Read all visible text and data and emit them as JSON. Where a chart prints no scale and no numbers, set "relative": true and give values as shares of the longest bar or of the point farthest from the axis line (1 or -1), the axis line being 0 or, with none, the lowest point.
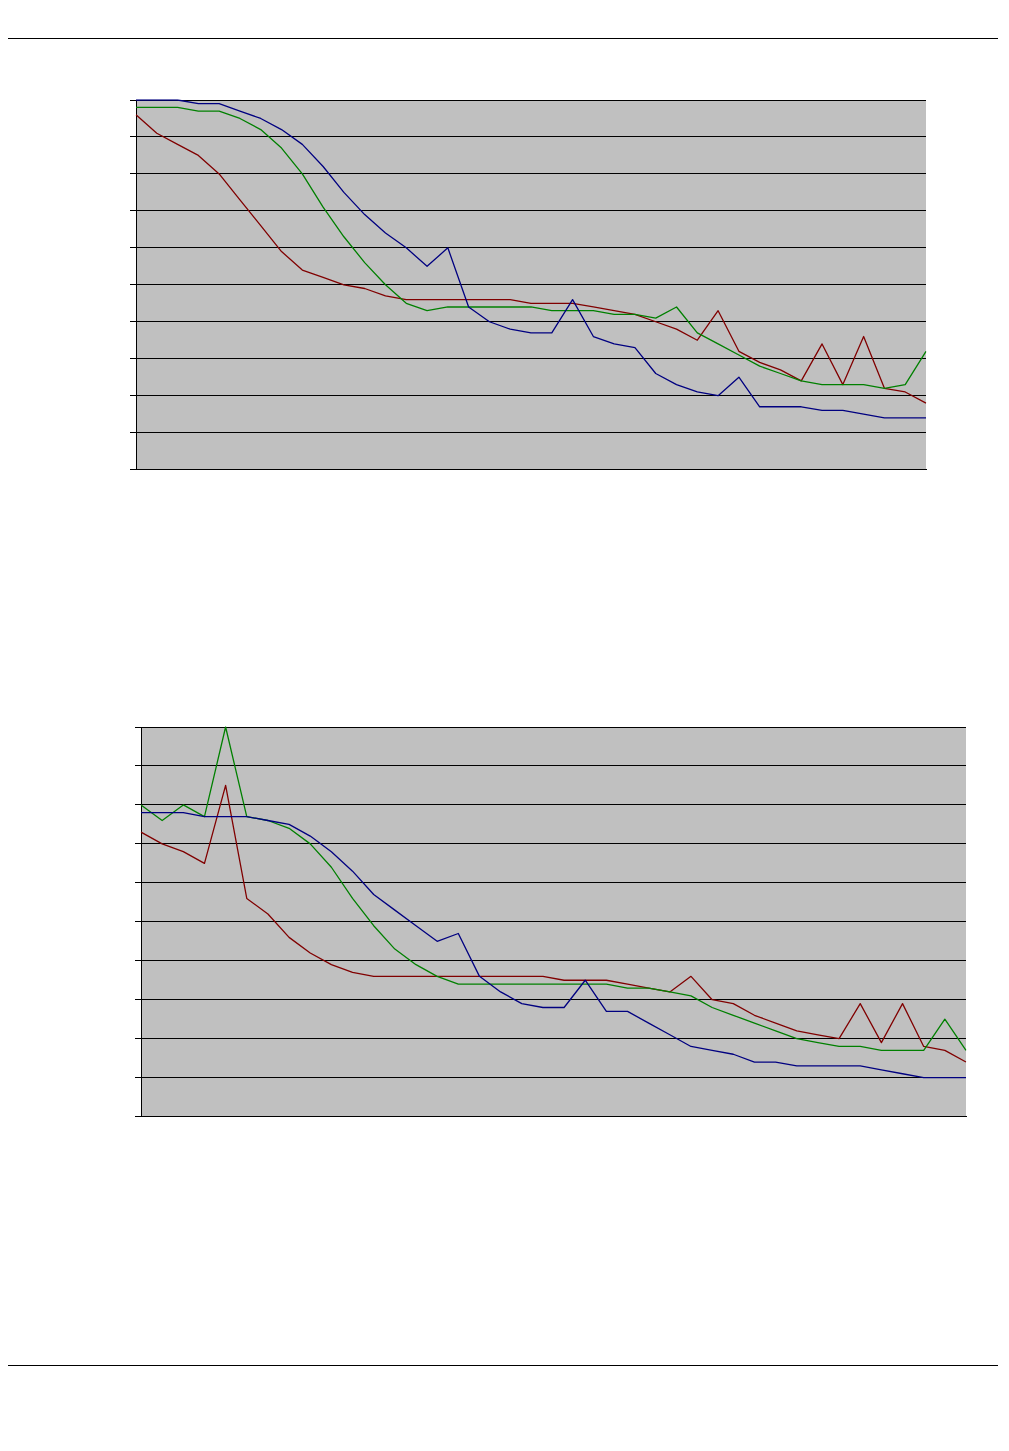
{
  "chart_data": [
    {
      "type": "line",
      "relative": true,
      "grid": "y",
      "legend": false,
      "marker": "none",
      "categories": [
        null,
        null,
        null,
        null,
        null,
        null,
        null,
        null,
        null,
        null,
        null,
        null,
        null,
        null,
        null,
        null,
        null,
        null,
        null,
        null,
        null,
        null,
        null,
        null,
        null,
        null,
        null,
        null,
        null,
        null,
        null,
        null,
        null,
        null,
        null,
        null,
        null,
        null,
        null
      ],
      "series": [
        {
          "color": "#000080",
          "values": [
            1.0,
            1.0,
            1.0,
            0.99,
            0.99,
            0.97,
            0.95,
            0.92,
            0.88,
            0.82,
            0.75,
            0.69,
            0.64,
            0.6,
            0.55,
            0.6,
            0.44,
            0.4,
            0.38,
            0.37,
            0.37,
            0.46,
            0.36,
            0.34,
            0.33,
            0.26,
            0.23,
            0.21,
            0.2,
            0.25,
            0.17,
            0.17,
            0.17,
            0.16,
            0.16,
            0.15,
            0.14,
            0.14,
            0.14
          ]
        },
        {
          "color": "#008000",
          "values": [
            0.98,
            0.98,
            0.98,
            0.97,
            0.97,
            0.95,
            0.92,
            0.87,
            0.8,
            0.71,
            0.63,
            0.56,
            0.5,
            0.45,
            0.43,
            0.44,
            0.44,
            0.44,
            0.44,
            0.44,
            0.43,
            0.43,
            0.43,
            0.42,
            0.42,
            0.41,
            0.44,
            0.37,
            0.34,
            0.31,
            0.28,
            0.26,
            0.24,
            0.23,
            0.23,
            0.23,
            0.22,
            0.23,
            0.32
          ]
        },
        {
          "color": "#800000",
          "values": [
            0.96,
            0.91,
            0.88,
            0.85,
            0.8,
            0.73,
            0.66,
            0.59,
            0.54,
            0.52,
            0.5,
            0.49,
            0.47,
            0.46,
            0.46,
            0.46,
            0.46,
            0.46,
            0.46,
            0.45,
            0.45,
            0.45,
            0.44,
            0.43,
            0.42,
            0.4,
            0.38,
            0.35,
            0.43,
            0.32,
            0.29,
            0.27,
            0.24,
            0.34,
            0.23,
            0.36,
            0.22,
            0.21,
            0.18
          ]
        }
      ]
    },
    {
      "type": "line",
      "relative": true,
      "grid": "y",
      "legend": false,
      "marker": "none",
      "categories": [
        null,
        null,
        null,
        null,
        null,
        null,
        null,
        null,
        null,
        null,
        null,
        null,
        null,
        null,
        null,
        null,
        null,
        null,
        null,
        null,
        null,
        null,
        null,
        null,
        null,
        null,
        null,
        null,
        null,
        null,
        null,
        null,
        null,
        null,
        null,
        null,
        null,
        null,
        null,
        null
      ],
      "series": [
        {
          "color": "#000080",
          "values": [
            0.78,
            0.78,
            0.78,
            0.77,
            0.77,
            0.77,
            0.76,
            0.75,
            0.72,
            0.68,
            0.63,
            0.57,
            0.53,
            0.49,
            0.45,
            0.47,
            0.36,
            0.32,
            0.29,
            0.28,
            0.28,
            0.35,
            0.27,
            0.27,
            0.24,
            0.21,
            0.18,
            0.17,
            0.16,
            0.14,
            0.14,
            0.13,
            0.13,
            0.13,
            0.13,
            0.12,
            0.11,
            0.1,
            0.1,
            0.1
          ]
        },
        {
          "color": "#008000",
          "values": [
            0.8,
            0.76,
            0.8,
            0.77,
            1.0,
            0.77,
            0.76,
            0.74,
            0.7,
            0.64,
            0.56,
            0.49,
            0.43,
            0.39,
            0.36,
            0.34,
            0.34,
            0.34,
            0.34,
            0.34,
            0.34,
            0.34,
            0.34,
            0.33,
            0.33,
            0.32,
            0.31,
            0.28,
            0.26,
            0.24,
            0.22,
            0.2,
            0.19,
            0.18,
            0.18,
            0.17,
            0.17,
            0.17,
            0.25,
            0.17
          ]
        },
        {
          "color": "#800000",
          "values": [
            0.73,
            0.7,
            0.68,
            0.65,
            0.85,
            0.56,
            0.52,
            0.46,
            0.42,
            0.39,
            0.37,
            0.36,
            0.36,
            0.36,
            0.36,
            0.36,
            0.36,
            0.36,
            0.36,
            0.36,
            0.35,
            0.35,
            0.35,
            0.34,
            0.33,
            0.32,
            0.36,
            0.3,
            0.29,
            0.26,
            0.24,
            0.22,
            0.21,
            0.2,
            0.29,
            0.19,
            0.29,
            0.18,
            0.17,
            0.14
          ]
        }
      ]
    }
  ]
}
